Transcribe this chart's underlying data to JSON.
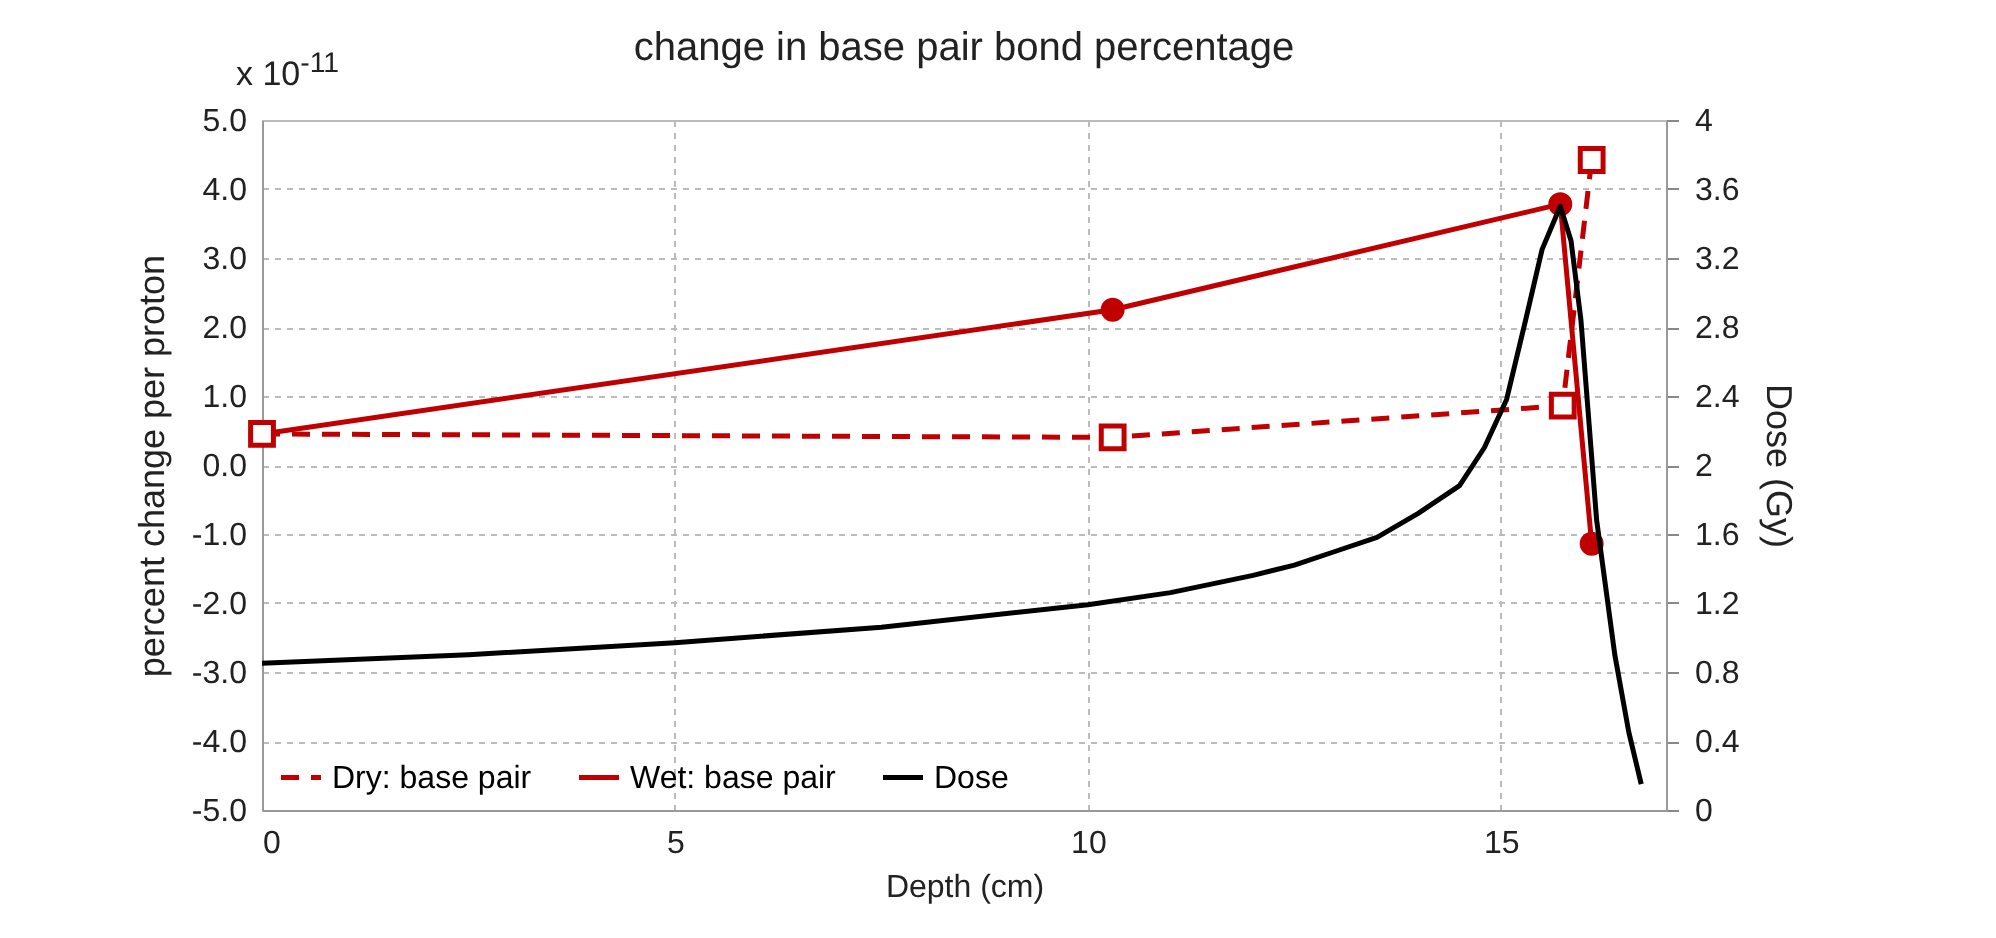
{
  "chart_data": {
    "type": "line",
    "title": "change in base pair bond percentage",
    "xlabel": "Depth (cm)",
    "ylabel": "percent change per proton",
    "y2label": "Dose (Gy)",
    "annotations": [
      "x 10$^{-11}$"
    ],
    "xlim": [
      0,
      17
    ],
    "xticks": [
      0,
      5,
      10,
      15
    ],
    "ylim": [
      -5,
      5
    ],
    "yticks": [
      {
        "value": -5,
        "label": "-5.0"
      },
      {
        "value": -4,
        "label": "-4.0"
      },
      {
        "value": -3,
        "label": "-3.0"
      },
      {
        "value": -2,
        "label": "-2.0"
      },
      {
        "value": -1,
        "label": "-1.0"
      },
      {
        "value": 0,
        "label": "0.0"
      },
      {
        "value": 1,
        "label": "1.0"
      },
      {
        "value": 2,
        "label": "2.0"
      },
      {
        "value": 3,
        "label": "3.0"
      },
      {
        "value": 4,
        "label": "4.0"
      },
      {
        "value": 5,
        "label": "5.0"
      }
    ],
    "y2lim": [
      0,
      4
    ],
    "y2ticks": [
      0,
      0.4,
      0.8,
      1.2,
      1.6,
      2,
      2.4,
      2.8,
      3.2,
      3.6,
      4
    ],
    "grid": true,
    "legend": "bottom left",
    "series": [
      {
        "name": "Dry: base pair",
        "color": "#c00000",
        "marker": "square",
        "line_style": "dashed",
        "x": [
          0,
          10.3,
          15.75,
          16.1
        ],
        "values": [
          0.45,
          0.4,
          0.86,
          4.42
        ]
      },
      {
        "name": "Wet: base pair",
        "color": "#c00000",
        "marker": "circle",
        "line_style": "solid",
        "x": [
          0,
          10.3,
          15.72,
          16.1
        ],
        "values": [
          0.45,
          2.25,
          3.78,
          -1.14
        ]
      },
      {
        "name": "Dose",
        "color": "#000000",
        "marker": "none",
        "line_style": "solid",
        "axis": "y2",
        "x": [
          0,
          2.5,
          5,
          7.5,
          10,
          11,
          12,
          12.5,
          13,
          13.5,
          14,
          14.5,
          14.8,
          15.07,
          15.3,
          15.5,
          15.72,
          15.85,
          15.97,
          16.16,
          16.38,
          16.55,
          16.7
        ],
        "values": [
          0.85,
          0.9,
          0.97,
          1.06,
          1.19,
          1.26,
          1.36,
          1.42,
          1.5,
          1.58,
          1.72,
          1.88,
          2.1,
          2.38,
          2.84,
          3.25,
          3.5,
          3.3,
          2.84,
          1.68,
          0.9,
          0.45,
          0.15
        ]
      }
    ]
  }
}
